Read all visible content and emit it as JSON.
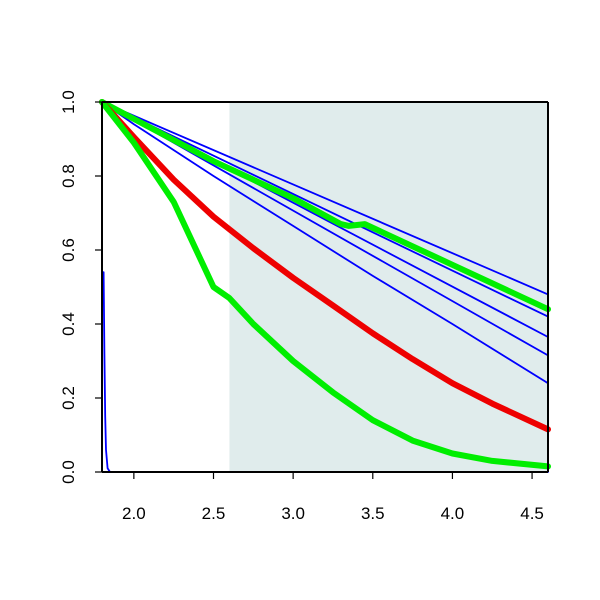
{
  "chart_data": {
    "type": "line",
    "title": "",
    "xlabel": "",
    "ylabel": "",
    "xlim": [
      1.8,
      4.6
    ],
    "ylim": [
      0.0,
      1.0
    ],
    "xticks": [
      2.0,
      2.5,
      3.0,
      3.5,
      4.0,
      4.5
    ],
    "xtick_labels": [
      "2.0",
      "2.5",
      "3.0",
      "3.5",
      "4.0",
      "4.5"
    ],
    "yticks": [
      0.0,
      0.2,
      0.4,
      0.6,
      0.8,
      1.0
    ],
    "ytick_labels": [
      "0.0",
      "0.2",
      "0.4",
      "0.6",
      "0.8",
      "1.0"
    ],
    "grid": false,
    "shaded_region": {
      "x_from": 2.6,
      "x_to": 4.6,
      "color": "#e0ecec"
    },
    "series": [
      {
        "color": "#0000ff",
        "width": "thin",
        "points": [
          [
            1.8,
            1.0
          ],
          [
            4.6,
            0.48
          ]
        ]
      },
      {
        "color": "#0000ff",
        "width": "thin",
        "points": [
          [
            1.8,
            1.0
          ],
          [
            4.6,
            0.42
          ]
        ]
      },
      {
        "color": "#0000ff",
        "width": "thin",
        "points": [
          [
            1.8,
            1.0
          ],
          [
            4.6,
            0.365
          ]
        ]
      },
      {
        "color": "#0000ff",
        "width": "thin",
        "points": [
          [
            1.8,
            1.0
          ],
          [
            4.6,
            0.315
          ]
        ]
      },
      {
        "color": "#0000ff",
        "width": "thin",
        "points": [
          [
            1.8,
            1.0
          ],
          [
            2.0,
            0.94
          ],
          [
            2.5,
            0.8
          ],
          [
            3.0,
            0.665
          ],
          [
            3.5,
            0.53
          ],
          [
            4.0,
            0.4
          ],
          [
            4.6,
            0.24
          ]
        ]
      },
      {
        "color": "#00ee00",
        "width": "thick",
        "points": [
          [
            1.8,
            1.0
          ],
          [
            2.5,
            0.84
          ],
          [
            3.0,
            0.74
          ],
          [
            3.3,
            0.67
          ],
          [
            3.35,
            0.665
          ],
          [
            3.45,
            0.67
          ],
          [
            4.0,
            0.56
          ],
          [
            4.6,
            0.44
          ]
        ]
      },
      {
        "color": "#ee0000",
        "width": "thick",
        "points": [
          [
            1.8,
            1.0
          ],
          [
            2.0,
            0.905
          ],
          [
            2.25,
            0.79
          ],
          [
            2.5,
            0.69
          ],
          [
            2.75,
            0.605
          ],
          [
            3.0,
            0.525
          ],
          [
            3.25,
            0.45
          ],
          [
            3.5,
            0.375
          ],
          [
            3.75,
            0.305
          ],
          [
            4.0,
            0.24
          ],
          [
            4.25,
            0.185
          ],
          [
            4.6,
            0.115
          ]
        ]
      },
      {
        "color": "#00ee00",
        "width": "thick",
        "points": [
          [
            1.8,
            1.0
          ],
          [
            2.0,
            0.89
          ],
          [
            2.25,
            0.73
          ],
          [
            2.5,
            0.5
          ],
          [
            2.6,
            0.47
          ],
          [
            2.75,
            0.4
          ],
          [
            3.0,
            0.3
          ],
          [
            3.25,
            0.215
          ],
          [
            3.5,
            0.14
          ],
          [
            3.75,
            0.085
          ],
          [
            4.0,
            0.05
          ],
          [
            4.25,
            0.03
          ],
          [
            4.6,
            0.015
          ]
        ]
      },
      {
        "color": "#0000ff",
        "width": "thin",
        "points": [
          [
            1.81,
            0.54
          ],
          [
            1.815,
            0.32
          ],
          [
            1.82,
            0.15
          ],
          [
            1.825,
            0.06
          ],
          [
            1.835,
            0.01
          ],
          [
            1.85,
            0.0
          ],
          [
            4.6,
            0.0
          ]
        ]
      }
    ]
  }
}
